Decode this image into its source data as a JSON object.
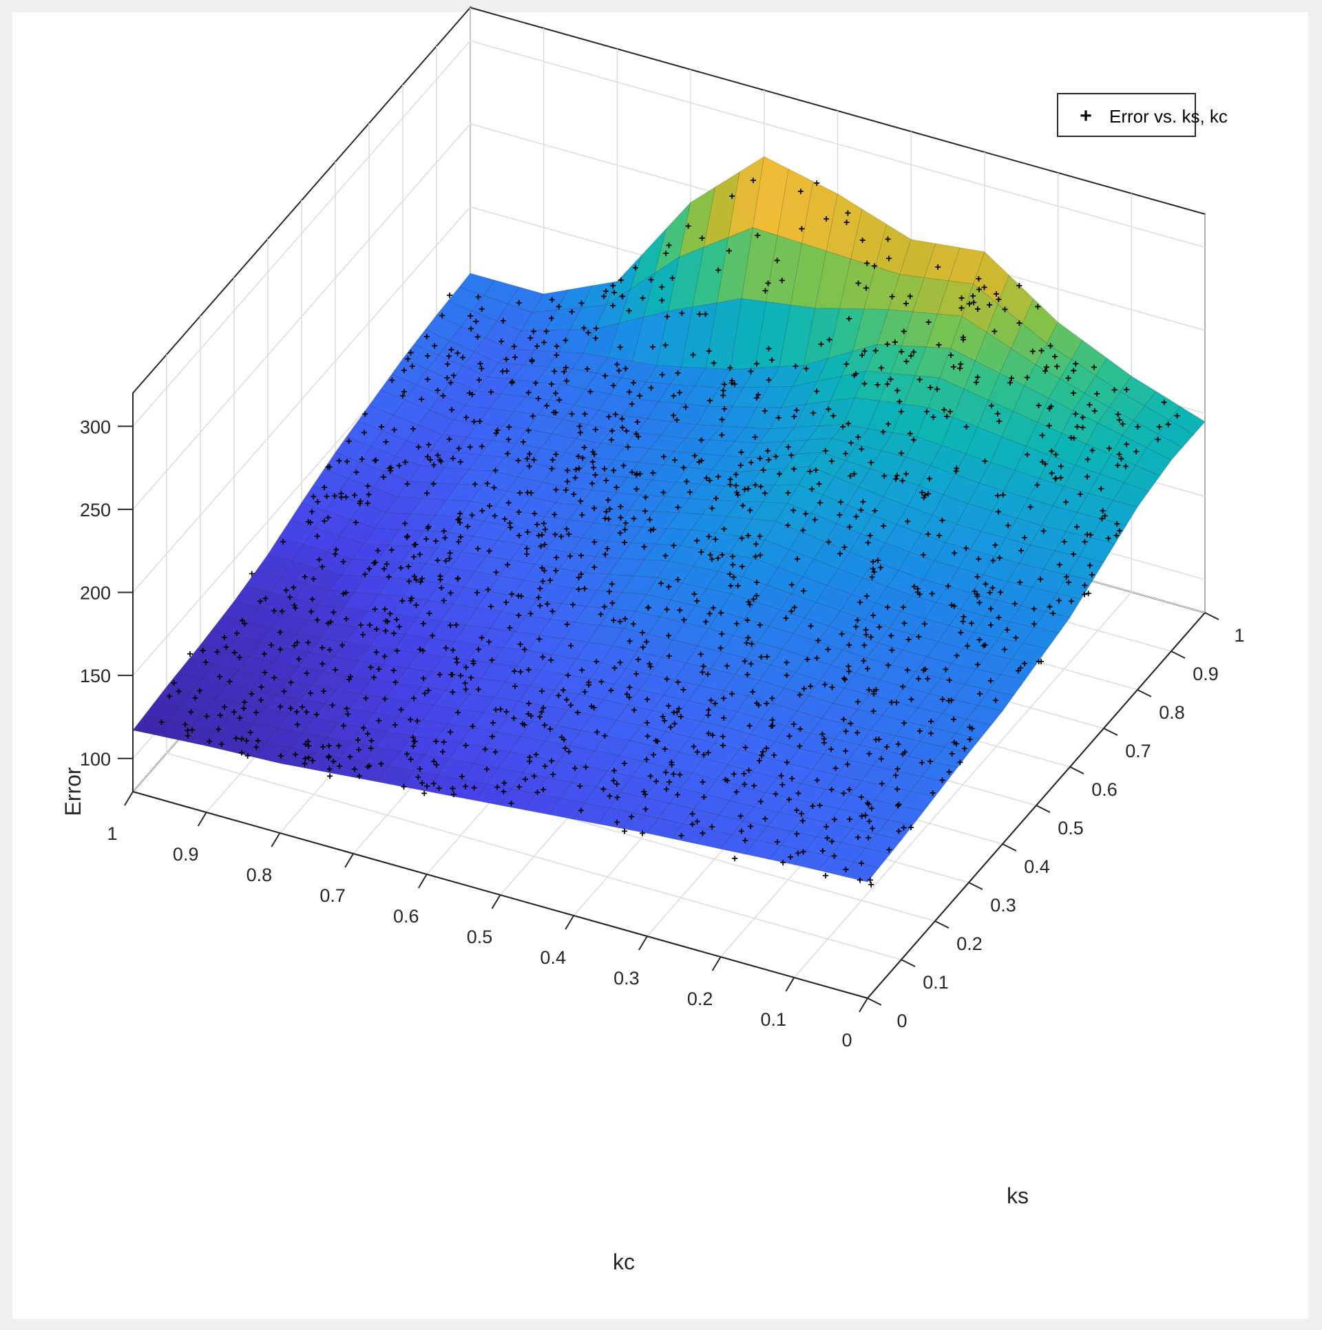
{
  "chart_data": {
    "type": "surface-scatter-3d",
    "title": "",
    "xlabel": "kc",
    "ylabel": "ks",
    "zlabel": "Error",
    "xlim": [
      0,
      1
    ],
    "ylim": [
      0,
      1
    ],
    "zlim": [
      80,
      320
    ],
    "x_ticks": [
      "0",
      "0.1",
      "0.2",
      "0.3",
      "0.4",
      "0.5",
      "0.6",
      "0.7",
      "0.8",
      "0.9",
      "1"
    ],
    "y_ticks": [
      "0",
      "0.1",
      "0.2",
      "0.3",
      "0.4",
      "0.5",
      "0.6",
      "0.7",
      "0.8",
      "0.9",
      "1"
    ],
    "z_ticks": [
      "100",
      "150",
      "200",
      "250",
      "300"
    ],
    "grid": true,
    "legend": {
      "placement": "top-right",
      "entries": [
        "Error vs. ks, kc"
      ]
    },
    "colormap": "parula",
    "colormap_colors": [
      "#3e26a8",
      "#4743e8",
      "#3d66f6",
      "#1f86e9",
      "#12a0d6",
      "#0db4b5",
      "#30c08a",
      "#7fc24c",
      "#c6b82f",
      "#f7bb36",
      "#f9e01e"
    ],
    "marker_color": "#000000",
    "surface_grid": {
      "kc": [
        0,
        0.1,
        0.2,
        0.3,
        0.4,
        0.5,
        0.6,
        0.7,
        0.8,
        0.9,
        1
      ],
      "ks": [
        0,
        0.1,
        0.2,
        0.3,
        0.4,
        0.5,
        0.6,
        0.7,
        0.8,
        0.9,
        1
      ],
      "error_rows_by_ks": [
        [
          150,
          148,
          145,
          142,
          138,
          134,
          130,
          126,
          122,
          120,
          117
        ],
        [
          152,
          150,
          147,
          146,
          144,
          140,
          136,
          130,
          126,
          122,
          120
        ],
        [
          155,
          152,
          150,
          150,
          148,
          145,
          140,
          134,
          128,
          124,
          122
        ],
        [
          158,
          156,
          154,
          155,
          152,
          150,
          145,
          138,
          132,
          126,
          125
        ],
        [
          160,
          158,
          158,
          160,
          160,
          158,
          150,
          145,
          140,
          130,
          130
        ],
        [
          165,
          162,
          162,
          165,
          168,
          165,
          155,
          150,
          145,
          135,
          138
        ],
        [
          170,
          168,
          168,
          172,
          178,
          170,
          160,
          152,
          150,
          140,
          145
        ],
        [
          180,
          178,
          178,
          182,
          188,
          172,
          164,
          156,
          152,
          145,
          150
        ],
        [
          190,
          190,
          192,
          195,
          190,
          175,
          165,
          158,
          155,
          148,
          155
        ],
        [
          195,
          205,
          215,
          225,
          215,
          190,
          175,
          165,
          160,
          150,
          158
        ],
        [
          195,
          210,
          230,
          260,
          255,
          270,
          280,
          240,
          180,
          160,
          160
        ]
      ]
    }
  }
}
